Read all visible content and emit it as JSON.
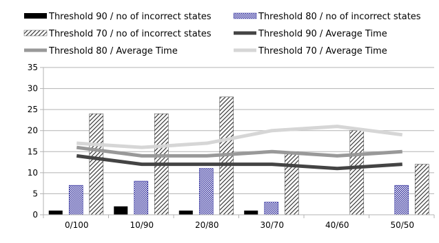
{
  "chart_data": {
    "type": "bar",
    "categories": [
      "0/100",
      "10/90",
      "20/80",
      "30/70",
      "40/60",
      "50/50"
    ],
    "ylim": [
      0,
      35
    ],
    "yticks": [
      0,
      5,
      10,
      15,
      20,
      25,
      30,
      35
    ],
    "grid": true,
    "legend_position": "top",
    "series": [
      {
        "name": "Threshold 90 / no of incorrect states",
        "kind": "bar",
        "style": "solid",
        "color": "#000000",
        "values": [
          1,
          2,
          1,
          1,
          0,
          0
        ]
      },
      {
        "name": "Threshold 80 / no of incorrect states",
        "kind": "bar",
        "style": "checker",
        "color": "#3a36a6",
        "values": [
          7,
          8,
          11,
          3,
          0,
          7
        ]
      },
      {
        "name": "Threshold 70 / no of incorrect states",
        "kind": "bar",
        "style": "hatch",
        "color": "#3a3a3a",
        "values": [
          24,
          24,
          28,
          15,
          20,
          12
        ]
      },
      {
        "name": "Threshold 90 / Average Time",
        "kind": "line",
        "color": "#444444",
        "values": [
          14,
          12,
          12,
          12,
          11,
          12
        ]
      },
      {
        "name": "Threshold 80 / Average Time",
        "kind": "line",
        "color": "#999999",
        "values": [
          16,
          14,
          14,
          15,
          14,
          15
        ]
      },
      {
        "name": "Threshold 70 / Average Time",
        "kind": "line",
        "color": "#d6d6d6",
        "values": [
          17,
          16,
          17,
          20,
          21,
          19
        ]
      }
    ]
  }
}
